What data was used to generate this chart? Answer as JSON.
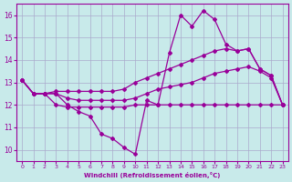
{
  "xlabel": "Windchill (Refroidissement éolien,°C)",
  "background_color": "#c8eaea",
  "grid_color": "#aaaacc",
  "line_color": "#990099",
  "xlim": [
    -0.5,
    23.5
  ],
  "ylim": [
    9.5,
    16.5
  ],
  "xticks": [
    0,
    1,
    2,
    3,
    4,
    5,
    6,
    7,
    8,
    9,
    10,
    11,
    12,
    13,
    14,
    15,
    16,
    17,
    18,
    19,
    20,
    21,
    22,
    23
  ],
  "yticks": [
    10,
    11,
    12,
    13,
    14,
    15,
    16
  ],
  "line1_x": [
    0,
    1,
    2,
    3,
    4,
    5,
    6,
    7,
    8,
    9,
    10,
    11,
    12,
    13,
    14,
    15,
    16,
    17,
    18,
    19,
    20,
    21,
    22,
    23
  ],
  "line1_y": [
    13.1,
    12.5,
    12.5,
    12.5,
    12.0,
    11.7,
    11.5,
    10.7,
    10.5,
    10.1,
    9.8,
    12.2,
    12.0,
    14.3,
    16.0,
    15.5,
    16.2,
    15.8,
    14.7,
    14.4,
    14.5,
    13.6,
    13.3,
    12.0
  ],
  "line2_x": [
    0,
    1,
    2,
    3,
    4,
    5,
    6,
    7,
    8,
    9,
    10,
    11,
    12,
    13,
    14,
    15,
    16,
    17,
    18,
    19,
    20,
    21,
    22,
    23
  ],
  "line2_y": [
    13.1,
    12.5,
    12.5,
    12.6,
    12.6,
    12.6,
    12.6,
    12.6,
    12.6,
    12.7,
    13.0,
    13.2,
    13.4,
    13.6,
    13.8,
    14.0,
    14.2,
    14.4,
    14.5,
    14.4,
    14.5,
    13.6,
    13.3,
    12.0
  ],
  "line3_x": [
    0,
    1,
    2,
    3,
    4,
    5,
    6,
    7,
    8,
    9,
    10,
    11,
    12,
    13,
    14,
    15,
    16,
    17,
    18,
    19,
    20,
    21,
    22,
    23
  ],
  "line3_y": [
    13.1,
    12.5,
    12.5,
    12.5,
    12.3,
    12.2,
    12.2,
    12.2,
    12.2,
    12.2,
    12.3,
    12.5,
    12.7,
    12.8,
    12.9,
    13.0,
    13.2,
    13.4,
    13.5,
    13.6,
    13.7,
    13.5,
    13.2,
    12.0
  ],
  "line4_x": [
    0,
    1,
    2,
    3,
    4,
    5,
    6,
    7,
    8,
    9,
    10,
    11,
    12,
    13,
    14,
    15,
    16,
    17,
    18,
    19,
    20,
    21,
    22,
    23
  ],
  "line4_y": [
    13.1,
    12.5,
    12.5,
    12.0,
    11.9,
    11.9,
    11.9,
    11.9,
    11.9,
    11.9,
    12.0,
    12.0,
    12.0,
    12.0,
    12.0,
    12.0,
    12.0,
    12.0,
    12.0,
    12.0,
    12.0,
    12.0,
    12.0,
    12.0
  ]
}
